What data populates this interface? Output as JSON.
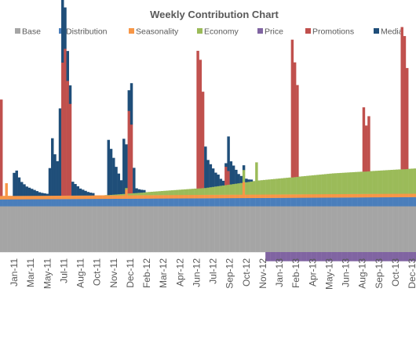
{
  "chart_data": {
    "type": "bar",
    "stacked": true,
    "title": "Weekly Contribution Chart",
    "legend_position": "top",
    "grid": false,
    "xlabel": "",
    "ylabel": "",
    "series": [
      {
        "name": "Base",
        "color": "#a5a5a5"
      },
      {
        "name": "Distribution",
        "color": "#4a7ebb"
      },
      {
        "name": "Seasonality",
        "color": "#f79646"
      },
      {
        "name": "Economy",
        "color": "#9bbb59"
      },
      {
        "name": "Price",
        "color": "#8064a2"
      },
      {
        "name": "Promotions",
        "color": "#c0504d"
      },
      {
        "name": "Media",
        "color": "#1f4e79"
      }
    ],
    "x_tick_labels": [
      "Jan-11",
      "Mar-11",
      "May-11",
      "Jul-11",
      "Aug-11",
      "Oct-11",
      "Nov-11",
      "Dec-11",
      "Feb-12",
      "Mar-12",
      "Apr-12",
      "Jun-12",
      "Jul-12",
      "Sep-12",
      "Oct-12",
      "Nov-12",
      "Jan-13",
      "Feb-13",
      "Apr-13",
      "May-13",
      "Jun-13",
      "Aug-13",
      "Sep-13",
      "Oct-13",
      "Dec-13"
    ],
    "weeks_total": 163,
    "segment_order": [
      "Base",
      "Distribution",
      "Seasonality",
      "Economy",
      "Price",
      "Promotions",
      "Media"
    ],
    "weekly": {
      "base": 20,
      "distribution": {
        "start": 3,
        "end": 4
      },
      "seasonality": {
        "typical": 1.5,
        "spikes": [
          {
            "week": 2,
            "value": 7
          },
          {
            "week": 49,
            "value": 4
          },
          {
            "week": 95,
            "value": 7
          }
        ]
      },
      "economy": {
        "points": [
          [
            0,
            0
          ],
          [
            40,
            0
          ],
          [
            60,
            1.5
          ],
          [
            80,
            3
          ],
          [
            100,
            6
          ],
          [
            130,
            9
          ],
          [
            163,
            11
          ]
        ],
        "spikes": [
          {
            "week": 100,
            "value": 8
          }
        ]
      },
      "price": {
        "from_week": 104,
        "to_week": 163,
        "value": -4
      },
      "promotions": [
        {
          "weeks": [
            0
          ],
          "values": [
            42
          ]
        },
        {
          "weeks": [
            24,
            25,
            26,
            27
          ],
          "values": [
            58,
            64,
            50,
            40
          ]
        },
        {
          "weeks": [
            50,
            51
          ],
          "values": [
            36,
            30
          ]
        },
        {
          "weeks": [
            77,
            78,
            79
          ],
          "values": [
            60,
            56,
            42
          ]
        },
        {
          "weeks": [
            88,
            89
          ],
          "values": [
            8,
            6
          ]
        },
        {
          "weeks": [
            114,
            115,
            116
          ],
          "values": [
            60,
            50,
            40
          ]
        },
        {
          "weeks": [
            142,
            143,
            144
          ],
          "values": [
            28,
            20,
            24
          ]
        },
        {
          "weeks": [
            157,
            158,
            159
          ],
          "values": [
            62,
            58,
            44
          ]
        }
      ],
      "media": [
        {
          "start": 5,
          "values": [
            10,
            11,
            8,
            6,
            5,
            4,
            3.5,
            3,
            2.5,
            2,
            1.5,
            1.2,
            1,
            0.8
          ]
        },
        {
          "start": 19,
          "values": [
            12,
            25,
            18,
            15,
            10,
            8,
            6,
            4
          ]
        },
        {
          "start": 23,
          "values": [
            28,
            30,
            12,
            9,
            8,
            6,
            5,
            4,
            3,
            2.5,
            2,
            1.5,
            1.2,
            1
          ]
        },
        {
          "start": 42,
          "values": [
            24,
            20,
            16,
            12,
            9,
            6,
            4,
            3
          ]
        },
        {
          "start": 48,
          "values": [
            20,
            16,
            9,
            5,
            3,
            2,
            1.5,
            1.2,
            1
          ]
        },
        {
          "start": 51,
          "values": [
            13,
            8
          ]
        },
        {
          "start": 80,
          "values": [
            18,
            12,
            10,
            8,
            6,
            5,
            3,
            2,
            1.5,
            1
          ]
        },
        {
          "start": 89,
          "values": [
            14,
            10,
            8,
            6,
            4,
            3,
            2,
            1.5,
            1,
            0.8
          ]
        }
      ]
    }
  }
}
